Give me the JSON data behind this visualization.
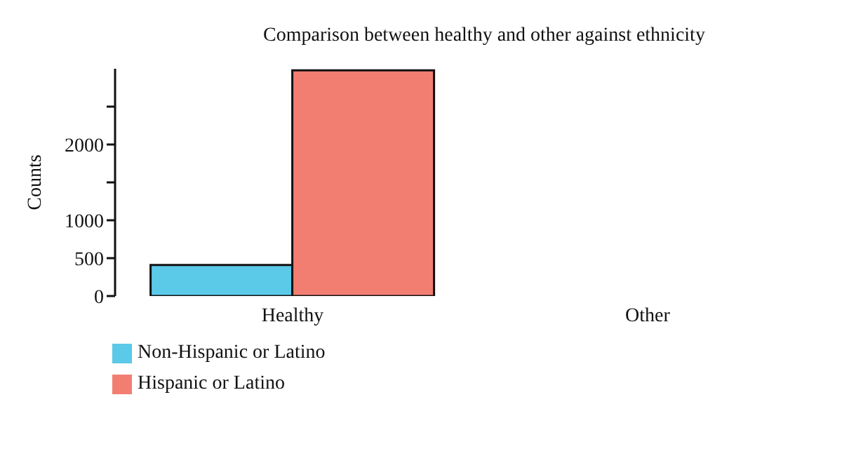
{
  "chart_data": {
    "type": "bar",
    "title": "Comparison between healthy and other against ethnicity",
    "ylabel": "Counts",
    "categories": [
      "Healthy",
      "Other"
    ],
    "series": [
      {
        "name": "Non-Hispanic or Latino",
        "color": "#5bc9e8",
        "values": [
          410,
          0
        ]
      },
      {
        "name": "Hispanic or Latino",
        "color": "#f27e72",
        "values": [
          2980,
          0
        ]
      }
    ],
    "ylim": [
      0,
      3000
    ],
    "yticks": [
      0,
      500,
      1000,
      {
        "value": 1500,
        "label": null
      },
      2000,
      {
        "value": 2500,
        "label": null
      }
    ],
    "grid": false,
    "legend": "bottom left"
  }
}
